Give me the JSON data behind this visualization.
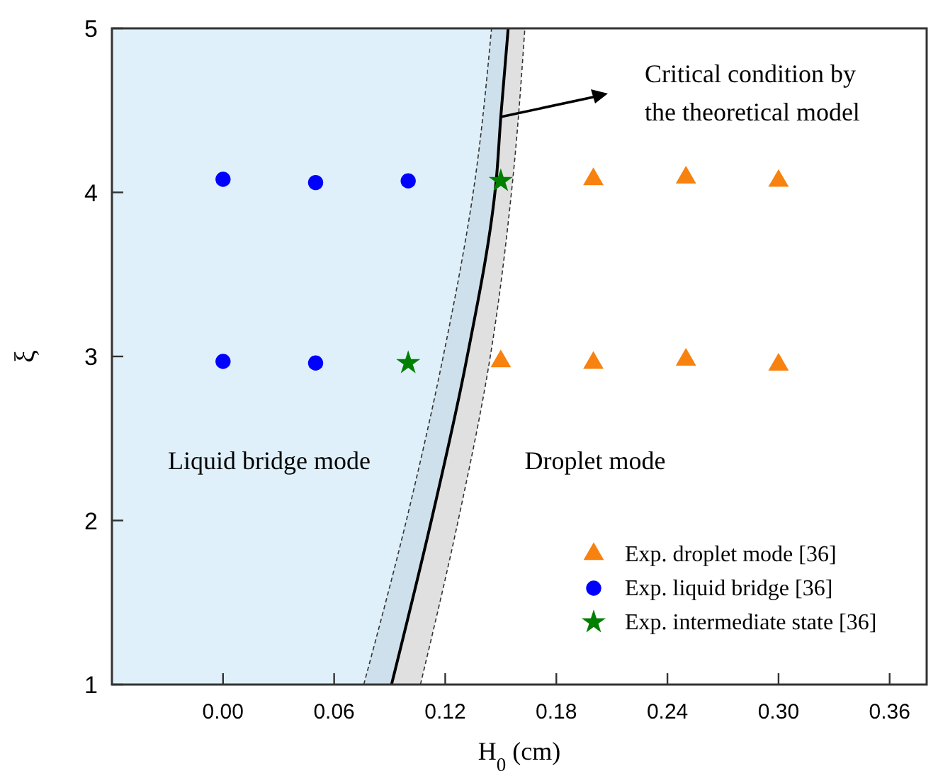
{
  "chart_data": {
    "type": "scatter",
    "xlabel": "H$_{0}$ (cm)",
    "ylabel": "ξ",
    "xlim": [
      -0.06,
      0.38
    ],
    "xticks": [
      {
        "value": 0,
        "label": "0.00"
      },
      0.06,
      0.12,
      0.18,
      0.24,
      {
        "value": 0.3,
        "label": "0.30"
      },
      0.36
    ],
    "ylim": [
      1,
      5
    ],
    "yticks": [
      1,
      2,
      3,
      4,
      5
    ],
    "grid": false,
    "legend": "bottom right",
    "series": [
      {
        "type": "line",
        "color": "#333333",
        "line_style": "dashed",
        "x": [
          0.076,
          0.099,
          0.118,
          0.136,
          0.145
        ],
        "values": [
          1,
          2,
          2.95,
          4.07,
          5
        ]
      },
      {
        "type": "line",
        "color": "#000000",
        "line_style": "solid",
        "x": [
          0.091,
          0.1125,
          0.131,
          0.1475,
          0.15,
          0.154
        ],
        "values": [
          1,
          2,
          2.95,
          4.07,
          4.46,
          5
        ]
      },
      {
        "type": "line",
        "color": "#333333",
        "line_style": "dashed",
        "x": [
          0.1066,
          0.127,
          0.1436,
          0.1564,
          0.163
        ],
        "values": [
          1,
          2,
          2.95,
          4.07,
          5
        ]
      },
      {
        "name": "Exp. droplet mode [36]",
        "color": "#f7820f",
        "marker": "triangle",
        "x": [
          0.2,
          0.25,
          0.3,
          0.15,
          0.2,
          0.25,
          0.3
        ],
        "values": [
          4.08,
          4.09,
          4.07,
          2.97,
          2.96,
          2.98,
          2.95
        ]
      },
      {
        "name": "Exp. liquid bridge [36]",
        "color": "#0000ff",
        "marker": "circle",
        "x": [
          0,
          0.05,
          0.1,
          0,
          0.05
        ],
        "values": [
          4.08,
          4.06,
          4.07,
          2.97,
          2.96
        ]
      },
      {
        "name": "Exp. intermediate state [36]",
        "color": "#008000",
        "marker": "star",
        "x": [
          0.15,
          0.1
        ],
        "values": [
          4.07,
          2.96
        ]
      }
    ],
    "annotations": [
      "Critical condition by the theoretical model",
      "Liquid bridge mode",
      "Droplet mode"
    ]
  }
}
